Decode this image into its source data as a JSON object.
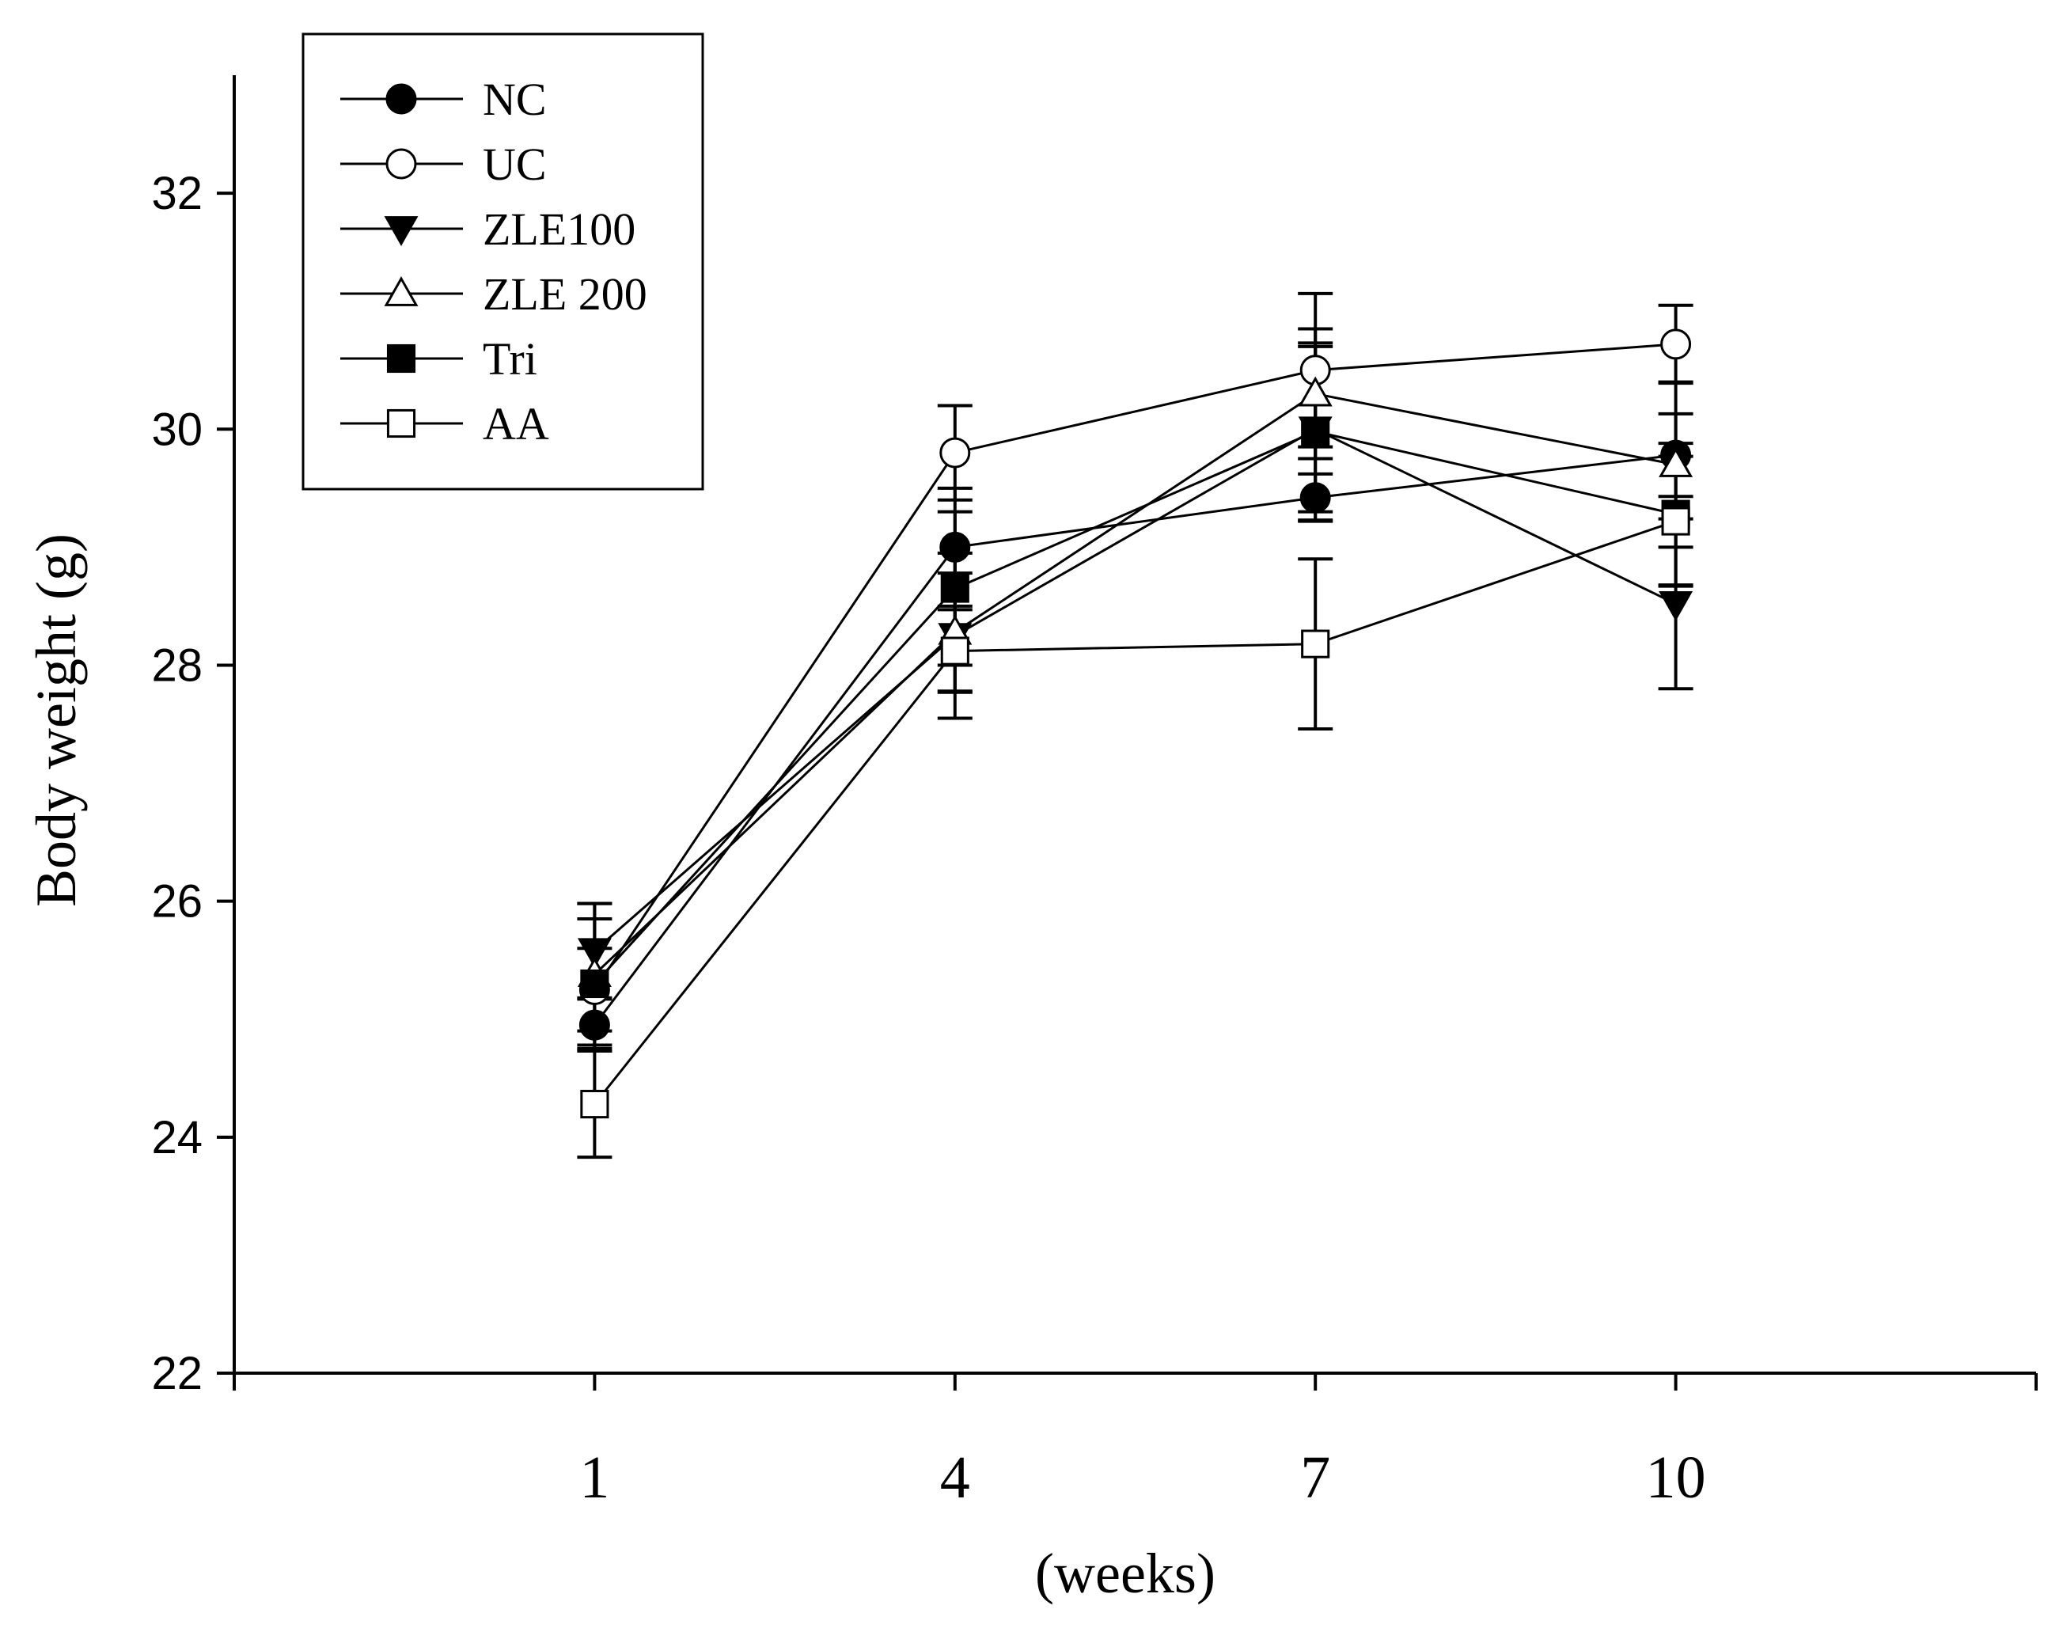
{
  "chart_data": {
    "type": "line",
    "title": "",
    "xlabel": "(weeks)",
    "ylabel": "Body weight (g)",
    "x": [
      1,
      4,
      7,
      10
    ],
    "x_tick_labels": [
      "1",
      "4",
      "7",
      "10"
    ],
    "xlim": [
      -2,
      13
    ],
    "ylim": [
      22,
      33
    ],
    "y_ticks": [
      22,
      24,
      26,
      28,
      30,
      32
    ],
    "y_tick_labels": [
      "22",
      "24",
      "26",
      "28",
      "30",
      "32"
    ],
    "grid": false,
    "legend_position": "top-left",
    "series": [
      {
        "name": "NC",
        "marker": "circle",
        "filled": true,
        "values": [
          24.95,
          29.0,
          29.42,
          29.78
        ],
        "errors": [
          0.22,
          0.5,
          0.2,
          0.35
        ]
      },
      {
        "name": "UC",
        "marker": "circle",
        "filled": false,
        "values": [
          25.25,
          29.8,
          30.5,
          30.72
        ],
        "errors": [
          0.35,
          0.4,
          0.65,
          0.33
        ]
      },
      {
        "name": "ZLE100",
        "marker": "triangle-down",
        "filled": true,
        "values": [
          25.58,
          28.25,
          30.0,
          28.52
        ],
        "errors": [
          0.4,
          0.7,
          0.7,
          0.72
        ]
      },
      {
        "name": "ZLE 200",
        "marker": "triangle-up",
        "filled": false,
        "values": [
          25.38,
          28.28,
          30.3,
          29.7
        ],
        "errors": [
          0.6,
          0.5,
          0.55,
          0.7
        ]
      },
      {
        "name": "Tri",
        "marker": "square",
        "filled": true,
        "values": [
          25.3,
          28.65,
          29.98,
          29.28
        ],
        "errors": [
          0.55,
          0.65,
          0.75,
          0.6
        ]
      },
      {
        "name": "AA",
        "marker": "square",
        "filled": false,
        "values": [
          24.28,
          28.12,
          28.18,
          29.22
        ],
        "errors": [
          0.45,
          0.35,
          0.72,
          0.55
        ]
      }
    ]
  }
}
